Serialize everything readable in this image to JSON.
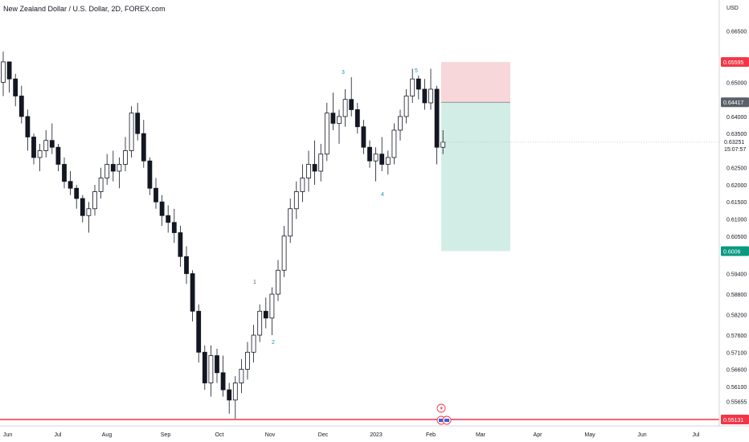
{
  "header": {
    "title": "New Zealand Dollar / U.S. Dollar, 2D, FOREX.com",
    "currency": "USD"
  },
  "chart_data": {
    "type": "candlestick",
    "title": "New Zealand Dollar / U.S. Dollar, 2D, FOREX.com",
    "ylabel": "USD",
    "ylim": [
      0.5506,
      0.6694
    ],
    "yticks": [
      "0.66500",
      "0.65000",
      "0.64000",
      "0.63500",
      "0.62500",
      "0.62000",
      "0.61500",
      "0.61000",
      "0.60500",
      "0.59400",
      "0.58800",
      "0.58200",
      "0.57600",
      "0.57100",
      "0.56600",
      "0.56100",
      "0.55655"
    ],
    "xticks": [
      "Jun",
      "Jul",
      "Aug",
      "Sep",
      "Oct",
      "Nov",
      "Dec",
      "2023",
      "Feb",
      "Mar",
      "Apr",
      "May",
      "Jun",
      "Jul"
    ],
    "grid": false,
    "price_labels": [
      {
        "text": "0.65595",
        "color": "#f23645"
      },
      {
        "text": "0.64417",
        "color": "#5d606b"
      },
      {
        "text": "0.6006",
        "color": "#089981"
      },
      {
        "text": "0.55131",
        "color": "#f23645"
      }
    ],
    "current_price": {
      "price": "0.63251",
      "countdown": "15:07:57"
    },
    "horizontal_line": 0.55131,
    "position_tool": {
      "entry": 0.64417,
      "stop": 0.65595,
      "target": 0.6006,
      "stop_color": "#f8d7da",
      "target_color": "#d2ede6"
    },
    "wave_labels": [
      {
        "label": "1",
        "date": "Oct 30"
      },
      {
        "label": "2",
        "date": "Nov 7"
      },
      {
        "label": "3",
        "date": "Dec 14"
      },
      {
        "label": "4",
        "date": "Jan 3"
      },
      {
        "label": "5",
        "date": "Jan 29"
      }
    ],
    "candles": [
      [
        0.65,
        0.659,
        0.646,
        0.656
      ],
      [
        0.656,
        0.656,
        0.647,
        0.651
      ],
      [
        0.651,
        0.6525,
        0.643,
        0.646
      ],
      [
        0.646,
        0.649,
        0.638,
        0.64
      ],
      [
        0.64,
        0.642,
        0.63,
        0.634
      ],
      [
        0.634,
        0.635,
        0.626,
        0.628
      ],
      [
        0.628,
        0.632,
        0.624,
        0.63
      ],
      [
        0.63,
        0.636,
        0.628,
        0.633
      ],
      [
        0.633,
        0.638,
        0.629,
        0.631
      ],
      [
        0.631,
        0.632,
        0.624,
        0.626
      ],
      [
        0.626,
        0.628,
        0.619,
        0.621
      ],
      [
        0.621,
        0.624,
        0.617,
        0.619
      ],
      [
        0.619,
        0.62,
        0.613,
        0.616
      ],
      [
        0.616,
        0.617,
        0.609,
        0.611
      ],
      [
        0.611,
        0.615,
        0.606,
        0.613
      ],
      [
        0.613,
        0.62,
        0.611,
        0.618
      ],
      [
        0.618,
        0.625,
        0.616,
        0.622
      ],
      [
        0.622,
        0.629,
        0.62,
        0.626
      ],
      [
        0.626,
        0.63,
        0.621,
        0.624
      ],
      [
        0.624,
        0.628,
        0.619,
        0.626
      ],
      [
        0.626,
        0.634,
        0.624,
        0.63
      ],
      [
        0.63,
        0.643,
        0.628,
        0.641
      ],
      [
        0.641,
        0.644,
        0.633,
        0.635
      ],
      [
        0.635,
        0.639,
        0.625,
        0.627
      ],
      [
        0.627,
        0.628,
        0.617,
        0.619
      ],
      [
        0.619,
        0.622,
        0.613,
        0.615
      ],
      [
        0.615,
        0.617,
        0.608,
        0.611
      ],
      [
        0.611,
        0.614,
        0.606,
        0.609
      ],
      [
        0.609,
        0.613,
        0.603,
        0.606
      ],
      [
        0.606,
        0.608,
        0.596,
        0.599
      ],
      [
        0.599,
        0.602,
        0.591,
        0.594
      ],
      [
        0.594,
        0.595,
        0.58,
        0.583
      ],
      [
        0.583,
        0.585,
        0.568,
        0.571
      ],
      [
        0.571,
        0.573,
        0.56,
        0.562
      ],
      [
        0.562,
        0.573,
        0.558,
        0.57
      ],
      [
        0.57,
        0.572,
        0.562,
        0.565
      ],
      [
        0.565,
        0.57,
        0.558,
        0.56
      ],
      [
        0.56,
        0.562,
        0.553,
        0.557
      ],
      [
        0.557,
        0.564,
        0.5515,
        0.562
      ],
      [
        0.562,
        0.569,
        0.559,
        0.566
      ],
      [
        0.566,
        0.574,
        0.563,
        0.571
      ],
      [
        0.571,
        0.579,
        0.568,
        0.576
      ],
      [
        0.576,
        0.585,
        0.574,
        0.583
      ],
      [
        0.583,
        0.587,
        0.578,
        0.581
      ],
      [
        0.581,
        0.59,
        0.576,
        0.588
      ],
      [
        0.588,
        0.598,
        0.586,
        0.595
      ],
      [
        0.595,
        0.608,
        0.593,
        0.605
      ],
      [
        0.605,
        0.616,
        0.603,
        0.613
      ],
      [
        0.613,
        0.621,
        0.61,
        0.618
      ],
      [
        0.618,
        0.626,
        0.615,
        0.622
      ],
      [
        0.622,
        0.63,
        0.618,
        0.626
      ],
      [
        0.626,
        0.633,
        0.62,
        0.624
      ],
      [
        0.624,
        0.632,
        0.621,
        0.629
      ],
      [
        0.629,
        0.644,
        0.627,
        0.641
      ],
      [
        0.641,
        0.647,
        0.636,
        0.638
      ],
      [
        0.638,
        0.642,
        0.632,
        0.64
      ],
      [
        0.64,
        0.648,
        0.637,
        0.645
      ],
      [
        0.645,
        0.6515,
        0.64,
        0.642
      ],
      [
        0.642,
        0.644,
        0.635,
        0.637
      ],
      [
        0.637,
        0.639,
        0.629,
        0.631
      ],
      [
        0.631,
        0.633,
        0.625,
        0.627
      ],
      [
        0.627,
        0.631,
        0.621,
        0.629
      ],
      [
        0.629,
        0.634,
        0.624,
        0.626
      ],
      [
        0.626,
        0.63,
        0.623,
        0.628
      ],
      [
        0.628,
        0.638,
        0.626,
        0.636
      ],
      [
        0.636,
        0.642,
        0.633,
        0.64
      ],
      [
        0.64,
        0.648,
        0.638,
        0.646
      ],
      [
        0.646,
        0.654,
        0.644,
        0.651
      ],
      [
        0.651,
        0.652,
        0.645,
        0.648
      ],
      [
        0.648,
        0.651,
        0.642,
        0.644
      ],
      [
        0.644,
        0.654,
        0.642,
        0.648
      ],
      [
        0.648,
        0.649,
        0.626,
        0.631
      ],
      [
        0.631,
        0.636,
        0.629,
        0.6325
      ]
    ]
  }
}
